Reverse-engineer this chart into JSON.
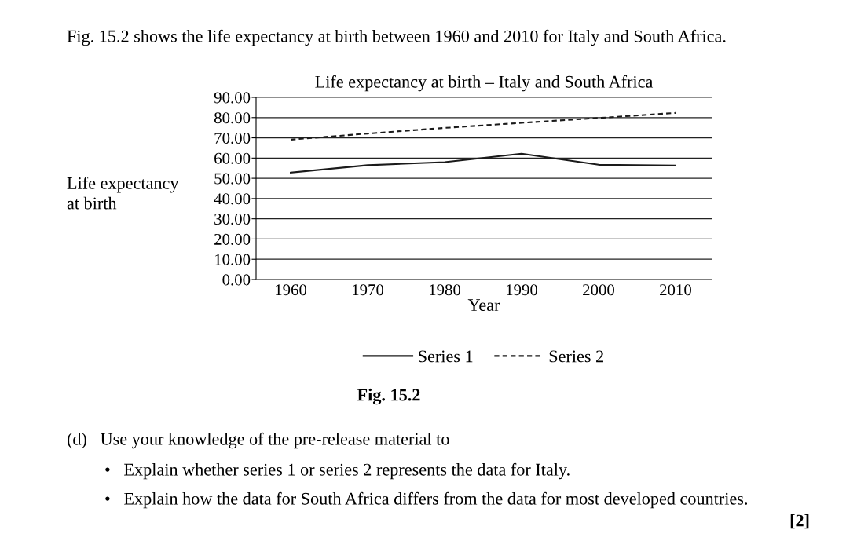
{
  "chart_data": {
    "type": "line",
    "title": "Life expectancy at birth – Italy and South Africa",
    "xlabel": "Year",
    "ylabel": "Life expectancy\nat birth",
    "categories": [
      "1960",
      "1970",
      "1980",
      "1990",
      "2000",
      "2010"
    ],
    "series": [
      {
        "name": "Series 1",
        "color": "#1a1a1a",
        "line_style": "solid",
        "values": [
          52.8,
          56.5,
          58.0,
          62.2,
          56.7,
          56.3
        ]
      },
      {
        "name": "Series 2",
        "color": "#1a1a1a",
        "line_style": "dashed",
        "values": [
          69.1,
          72.1,
          74.9,
          77.4,
          79.8,
          82.3
        ]
      }
    ],
    "ylim": [
      0,
      90
    ],
    "yticks": [
      {
        "value": 0,
        "label": "0.00"
      },
      {
        "value": 10,
        "label": "10.00"
      },
      {
        "value": 20,
        "label": "20.00"
      },
      {
        "value": 30,
        "label": "30.00"
      },
      {
        "value": 40,
        "label": "40.00"
      },
      {
        "value": 50,
        "label": "50.00"
      },
      {
        "value": 60,
        "label": "60.00"
      },
      {
        "value": 70,
        "label": "70.00"
      },
      {
        "value": 80,
        "label": "80.00"
      },
      {
        "value": 90,
        "label": "90.00"
      }
    ],
    "grid": "y",
    "legend": "bottom",
    "marker": "none",
    "annotations": [
      "Fig. 15.2 shows the life expectancy at birth between 1960 and 2010 for Italy and South Africa.",
      "Fig. 15.2",
      "(d)   Use your knowledge of the pre-release material to",
      "•   Explain whether series 1 or series 2 represents the data for Italy.",
      "•   Explain how the data for South Africa differs from the data for most developed countries.",
      "[2]"
    ]
  }
}
